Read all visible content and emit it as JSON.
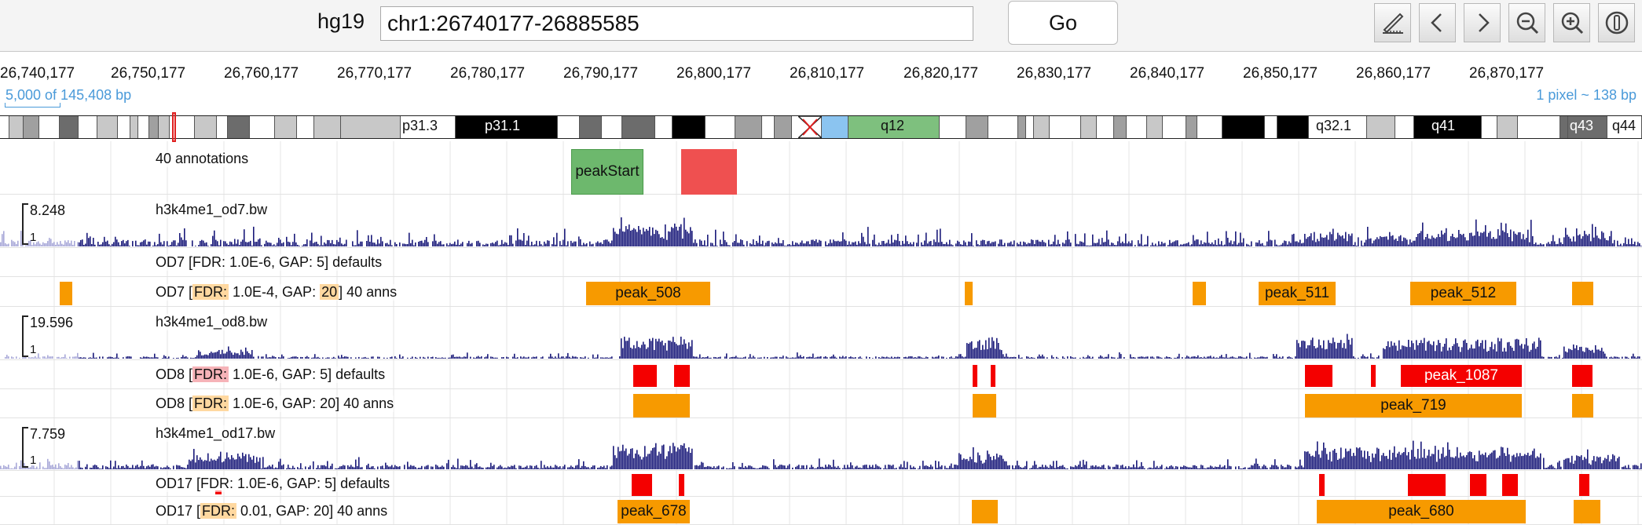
{
  "toolbar": {
    "genome": "hg19",
    "locus_value": "chr1:26740177-26885585",
    "go_label": "Go",
    "buttons": [
      {
        "icon": "ruler-pencil-icon",
        "name": "edit-ruler-button"
      },
      {
        "icon": "chevron-left-icon",
        "name": "back-button"
      },
      {
        "icon": "chevron-right-icon",
        "name": "forward-button"
      },
      {
        "icon": "zoom-out-icon",
        "name": "zoom-out-button"
      },
      {
        "icon": "zoom-in-icon",
        "name": "zoom-in-button"
      },
      {
        "icon": "info-icon",
        "name": "info-button"
      }
    ]
  },
  "ruler": {
    "ticks": [
      "26,740,177",
      "26,750,177",
      "26,760,177",
      "26,770,177",
      "26,780,177",
      "26,790,177",
      "26,800,177",
      "26,810,177",
      "26,820,177",
      "26,830,177",
      "26,840,177",
      "26,850,177",
      "26,860,177",
      "26,870,177"
    ],
    "span_text": "5,000 of 145,408 bp",
    "pixel_text": "1 pixel ~ 138 bp"
  },
  "ideogram": {
    "labels": [
      "p31.3",
      "p31.1",
      "q12",
      "q32.1",
      "q41",
      "q43",
      "q44"
    ],
    "colors": {
      "gneg": "#ffffff",
      "gpos25": "#c8c8c8",
      "gpos50": "#a0a0a0",
      "gpos75": "#6c6c6c",
      "gpos100": "#000000",
      "acen": "#8bc4f0",
      "gvar": "#7ec07e",
      "marker": "#e02020"
    }
  },
  "tracks": {
    "annotations": {
      "name": "40 annotations",
      "features": [
        "peakStart",
        ""
      ]
    },
    "od7_signal": {
      "name": "h3k4me1_od7.bw",
      "max": "8.248",
      "min": "1"
    },
    "od7_defaults": {
      "prefix": "OD7 [FDR: 1.0E-6, GAP: 5] defaults"
    },
    "od7_anns": {
      "prefix": "OD7 [",
      "fdr": "FDR:",
      "mid": " 1.0E-4, GAP: ",
      "gap": "20",
      "suffix": "] 40 anns",
      "features": [
        "peak_508",
        "peak_511",
        "peak_512"
      ]
    },
    "od8_signal": {
      "name": "h3k4me1_od8.bw",
      "max": "19.596",
      "min": "1"
    },
    "od8_defaults": {
      "prefix": "OD8 [",
      "fdr": "FDR:",
      "suffix": " 1.0E-6, GAP: 5] defaults",
      "features": [
        "peak_1087"
      ]
    },
    "od8_anns": {
      "prefix": "OD8 [",
      "fdr": "FDR:",
      "suffix": " 1.0E-6, GAP: 20] 40 anns",
      "features": [
        "peak_719"
      ]
    },
    "od17_signal": {
      "name": "h3k4me1_od17.bw",
      "max": "7.759",
      "min": "1"
    },
    "od17_defaults": {
      "prefix": "OD17 [FDR: 1.0E-6, GAP: 5] defaults"
    },
    "od17_anns": {
      "prefix": "OD17 [",
      "fdr": "FDR:",
      "suffix": " 0.01, GAP: 20] 40 anns",
      "features": [
        "peak_678",
        "peak_680"
      ]
    }
  },
  "colors": {
    "signal": "#1a1a7a",
    "signal_light": "#a8a8d8",
    "peak_orange": "#f79a00",
    "peak_red": "#f40000",
    "accent_blue": "#4a9ad9"
  }
}
